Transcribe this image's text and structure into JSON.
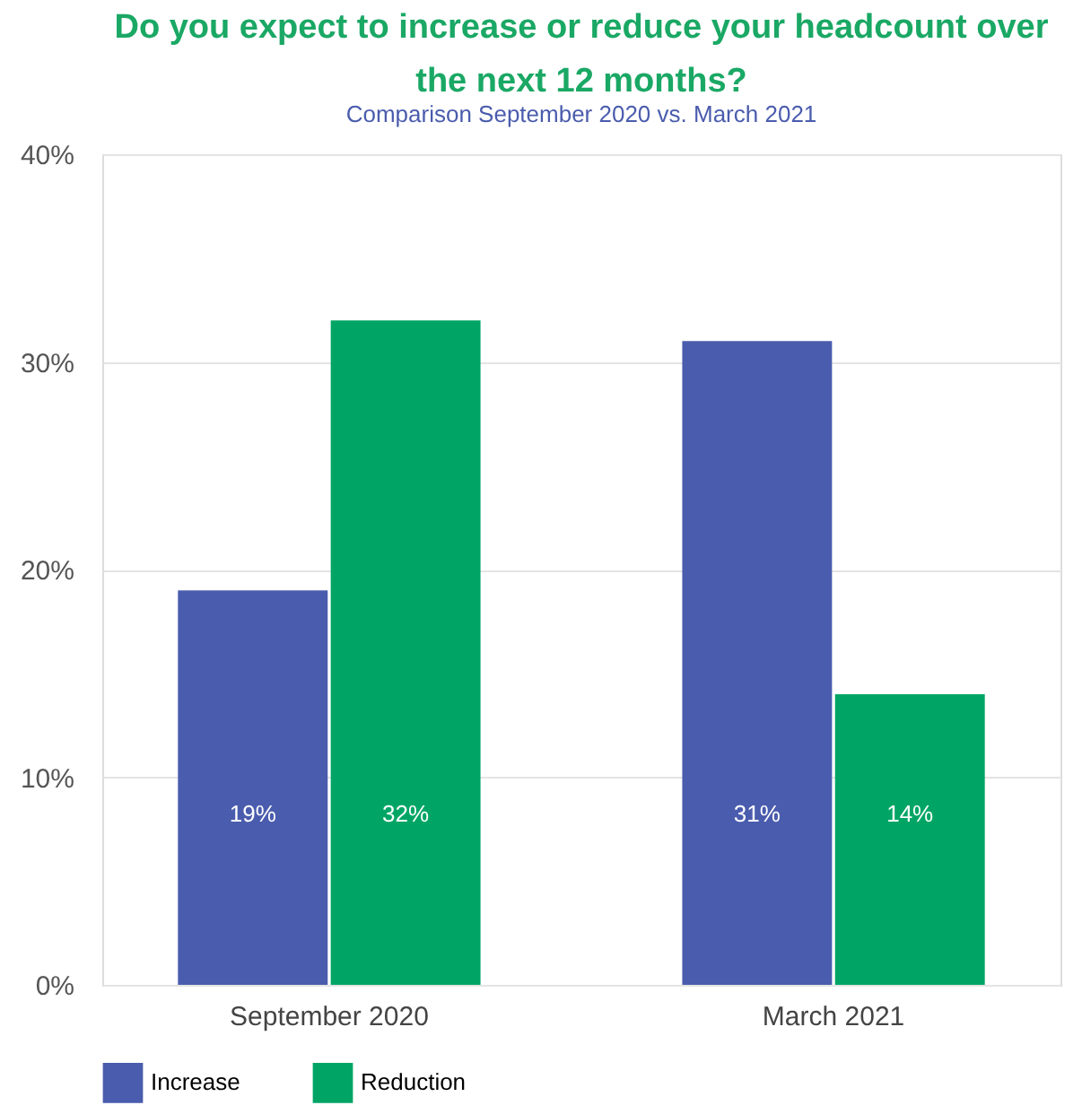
{
  "chart_data": {
    "type": "bar",
    "title": "Do you expect to increase or reduce your headcount over the next 12 months?",
    "subtitle": "Comparison September 2020 vs. March 2021",
    "categories": [
      "September 2020",
      "March 2021"
    ],
    "series": [
      {
        "name": "Increase",
        "color": "#4a5cad",
        "values": [
          19,
          31
        ],
        "value_labels": [
          "19%",
          "31%"
        ]
      },
      {
        "name": "Reduction",
        "color": "#00a565",
        "values": [
          32,
          14
        ],
        "value_labels": [
          "32%",
          "14%"
        ]
      }
    ],
    "ylim": [
      0,
      40
    ],
    "yticks": [
      {
        "value": 0,
        "label": "0%"
      },
      {
        "value": 10,
        "label": "10%"
      },
      {
        "value": 20,
        "label": "20%"
      },
      {
        "value": 30,
        "label": "30%"
      },
      {
        "value": 40,
        "label": "40%"
      }
    ],
    "grid": "y",
    "legend": "bottom left"
  }
}
